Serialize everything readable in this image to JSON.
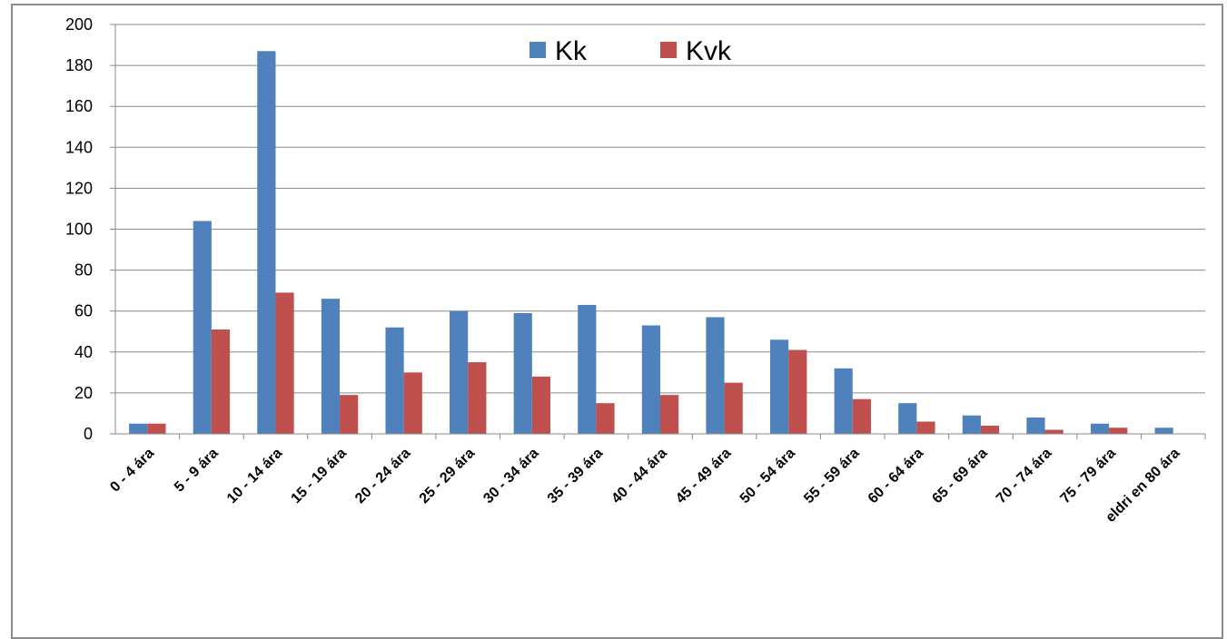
{
  "chart_data": {
    "type": "bar",
    "title": "",
    "xlabel": "",
    "ylabel": "",
    "ylim": [
      0,
      200
    ],
    "yticks": [
      0,
      20,
      40,
      60,
      80,
      100,
      120,
      140,
      160,
      180,
      200
    ],
    "grid": true,
    "legend_position": "top-center",
    "categories": [
      "0 - 4 ára",
      "5 - 9 ára",
      "10 - 14 ára",
      "15 - 19 ára",
      "20 - 24 ára",
      "25 - 29 ára",
      "30 - 34 ára",
      "35 - 39 ára",
      "40 - 44 ára",
      "45 - 49 ára",
      "50 - 54 ára",
      "55 - 59 ára",
      "60 - 64 ára",
      "65 - 69 ára",
      "70 - 74 ára",
      "75 - 79 ára",
      "eldri en 80 ára"
    ],
    "series": [
      {
        "name": "Kk",
        "color": "#4f81bd",
        "values": [
          5,
          104,
          187,
          66,
          52,
          60,
          59,
          63,
          53,
          57,
          46,
          32,
          15,
          9,
          8,
          5,
          3
        ]
      },
      {
        "name": "Kvk",
        "color": "#c0504d",
        "values": [
          5,
          51,
          69,
          19,
          30,
          35,
          28,
          15,
          19,
          25,
          41,
          17,
          6,
          4,
          2,
          3,
          0
        ]
      }
    ]
  }
}
